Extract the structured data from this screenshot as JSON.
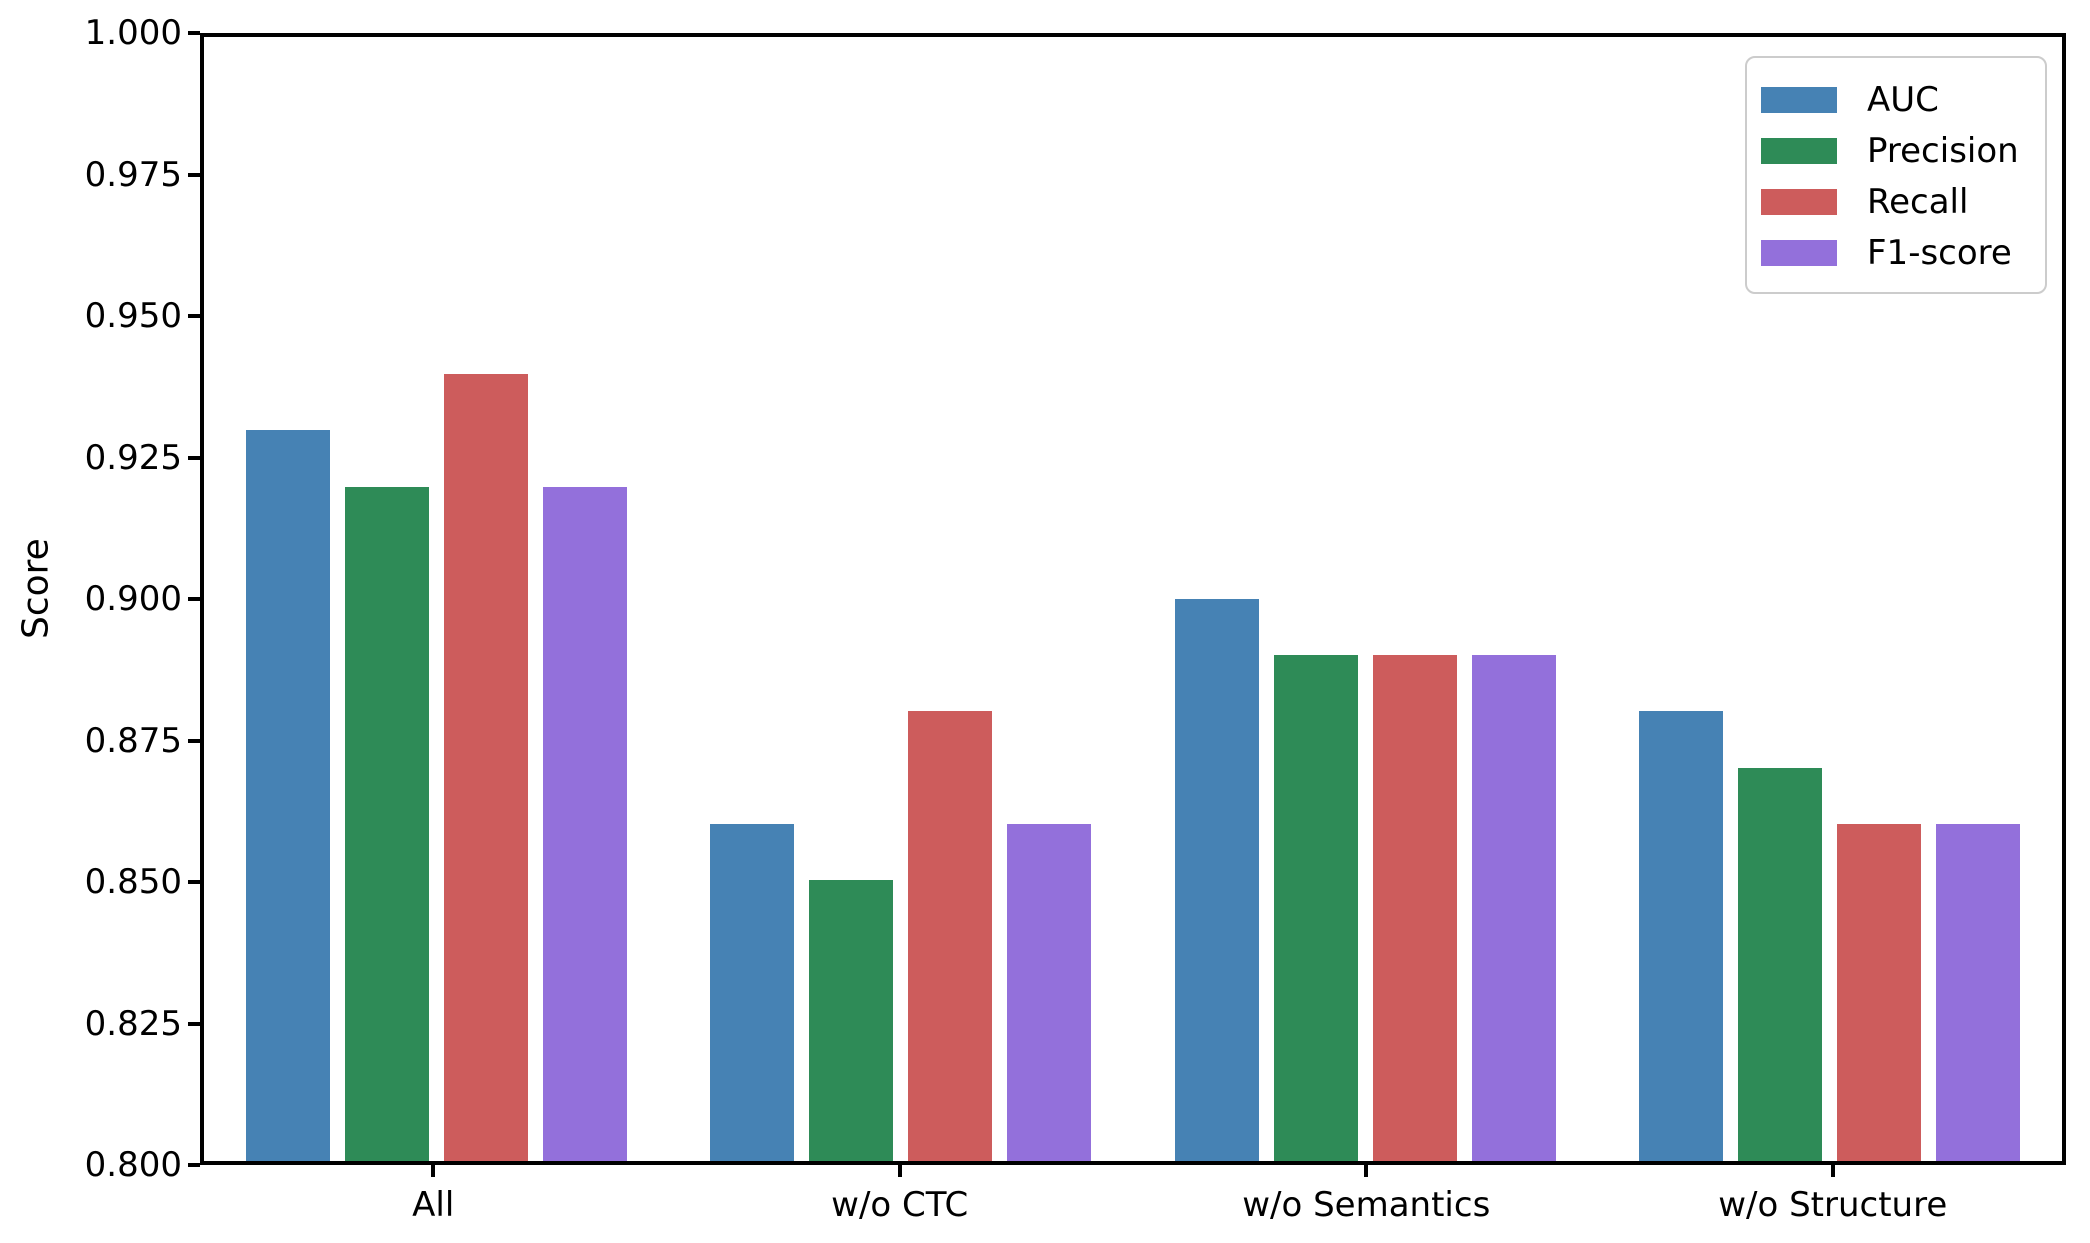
{
  "chart_data": {
    "type": "bar",
    "title": "",
    "xlabel": "",
    "ylabel": "Score",
    "ylim": [
      0.8,
      1.0
    ],
    "yticks": [
      "1.000",
      "0.975",
      "0.950",
      "0.925",
      "0.900",
      "0.875",
      "0.850",
      "0.825",
      "0.800"
    ],
    "categories": [
      "All",
      "w/o CTC",
      "w/o Semantics",
      "w/o Structure"
    ],
    "series": [
      {
        "name": "AUC",
        "color": "#4682B4",
        "values": [
          0.93,
          0.86,
          0.9,
          0.88
        ]
      },
      {
        "name": "Precision",
        "color": "#2E8B57",
        "values": [
          0.92,
          0.85,
          0.89,
          0.87
        ]
      },
      {
        "name": "Recall",
        "color": "#CD5C5C",
        "values": [
          0.94,
          0.88,
          0.89,
          0.86
        ]
      },
      {
        "name": "F1-score",
        "color": "#9370DB",
        "values": [
          0.92,
          0.86,
          0.89,
          0.86
        ]
      }
    ],
    "legend_position": "upper right",
    "grid": false,
    "colors": {
      "spine": "#000000",
      "background": "#ffffff",
      "legend_border": "#cccccc"
    }
  }
}
